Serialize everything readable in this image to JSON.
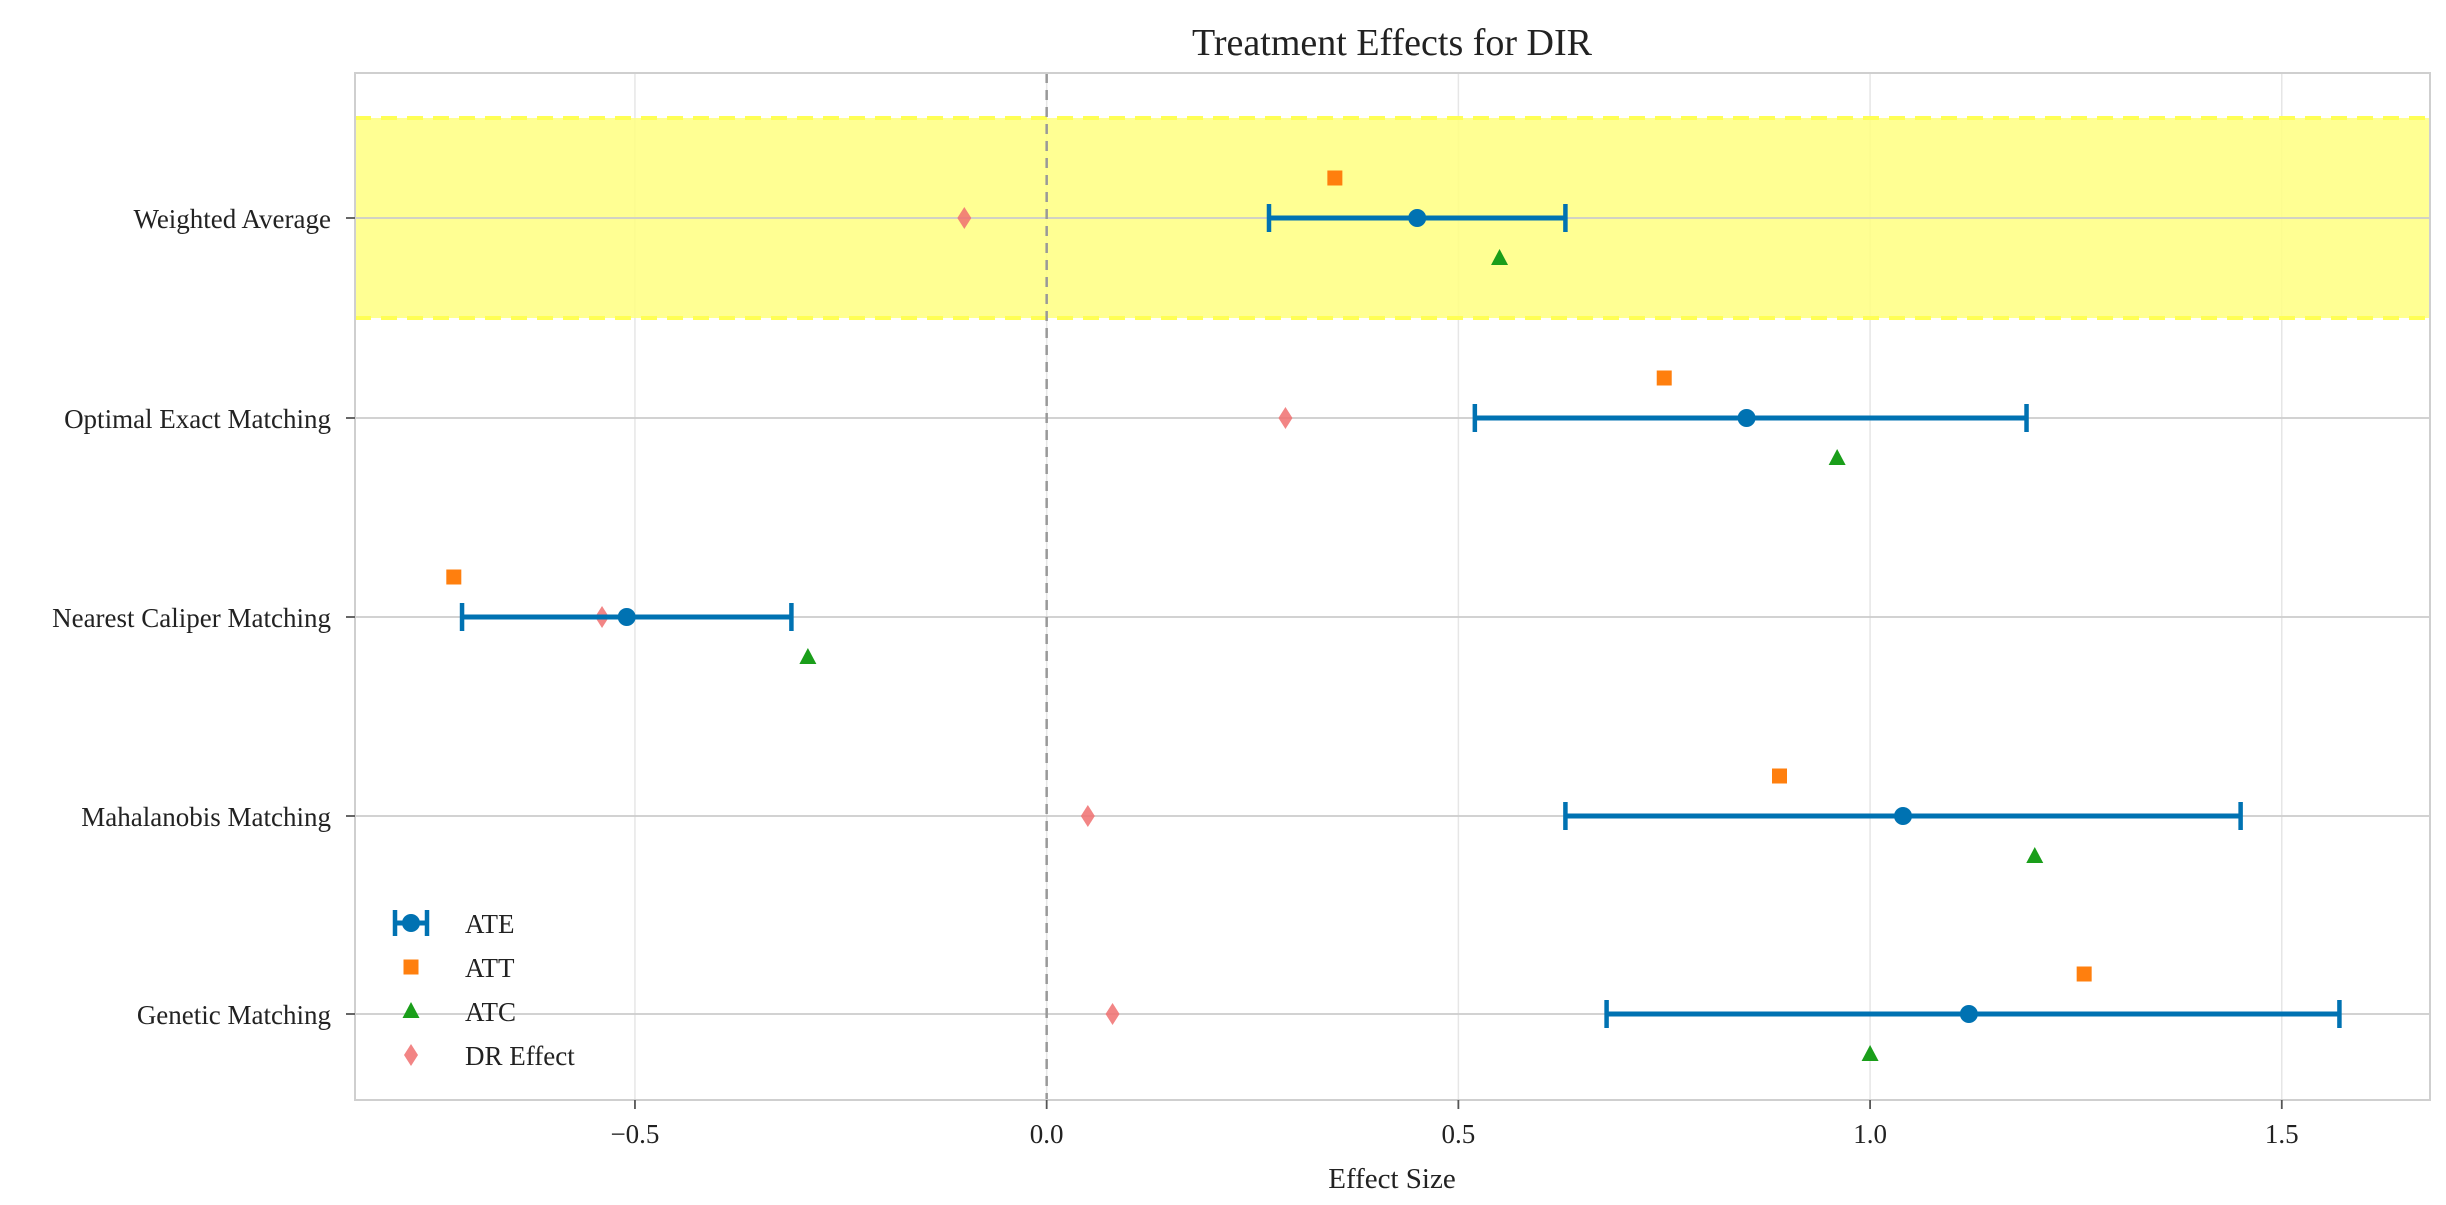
{
  "chart_data": {
    "type": "forest",
    "title": "Treatment Effects for DIR",
    "xlabel": "Effect Size",
    "ylabel": "",
    "xlim": [
      -0.84,
      1.68
    ],
    "xticks": [
      -0.5,
      0.0,
      0.5,
      1.0,
      1.5
    ],
    "xtick_labels": [
      "−0.5",
      "0.0",
      "0.5",
      "1.0",
      "1.5"
    ],
    "reference_line": 0.0,
    "highlight_row": "Weighted Average",
    "grid": true,
    "legend_position": "lower-left",
    "categories": [
      "Weighted Average",
      "Optimal Exact Matching",
      "Nearest Caliper Matching",
      "Mahalanobis Matching",
      "Genetic Matching"
    ],
    "series": [
      {
        "name": "ATE",
        "marker": "circle",
        "color": "#0072b2",
        "values": [
          0.45,
          0.85,
          -0.51,
          1.04,
          1.12
        ],
        "ci_low": [
          0.27,
          0.52,
          -0.71,
          0.63,
          0.68
        ],
        "ci_high": [
          0.63,
          1.19,
          -0.31,
          1.45,
          1.57
        ]
      },
      {
        "name": "ATT",
        "marker": "square",
        "color": "#ff7f0e",
        "values": [
          0.35,
          0.75,
          -0.72,
          0.89,
          1.26
        ]
      },
      {
        "name": "ATC",
        "marker": "triangle",
        "color": "#1a9e1a",
        "values": [
          0.55,
          0.96,
          -0.29,
          1.2,
          1.0
        ]
      },
      {
        "name": "DR Effect",
        "marker": "diamond",
        "color": "#f07070",
        "values": [
          -0.1,
          0.29,
          -0.54,
          0.05,
          0.08
        ]
      }
    ]
  }
}
